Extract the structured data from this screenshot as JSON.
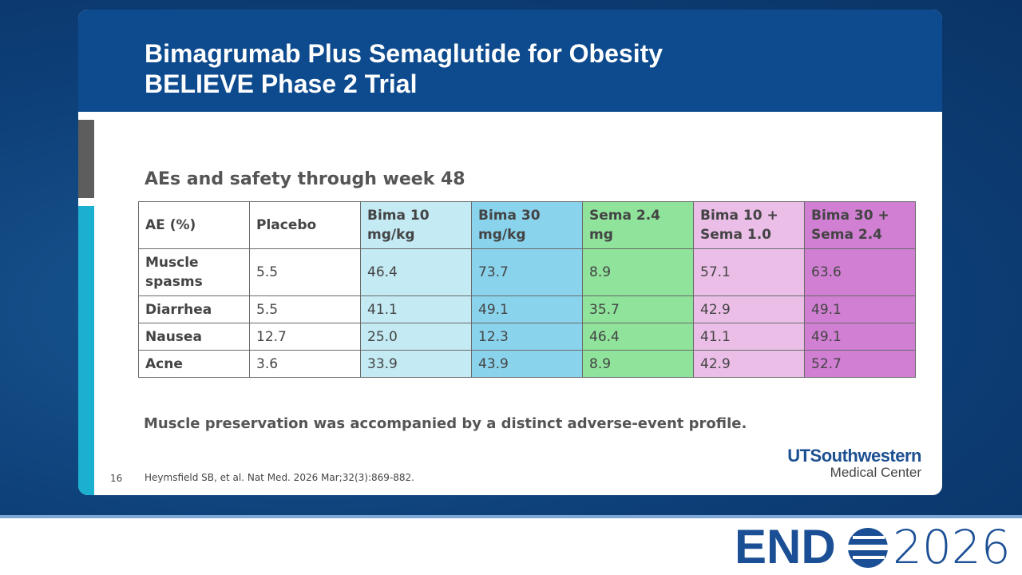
{
  "header": {
    "title": [
      "Bimagrumab Plus Semaglutide for Obesity",
      "BELIEVE Phase 2 Trial"
    ]
  },
  "subtitle": "AEs and safety through week 48",
  "table": {
    "columns": [
      "AE (%)",
      "Placebo",
      "Bima 10 mg/kg",
      "Bima 30 mg/kg",
      "Sema 2.4 mg",
      "Bima 10 + Sema 1.0",
      "Bima 30 + Sema 2.4"
    ],
    "column_colors": [
      "#ffffff",
      "#ffffff",
      "#c4eaf4",
      "#8ad3ec",
      "#8fe39b",
      "#ebbee8",
      "#d07fd3"
    ],
    "rows": [
      [
        "Muscle spasms",
        "5.5",
        "46.4",
        "73.7",
        "8.9",
        "57.1",
        "63.6"
      ],
      [
        "Diarrhea",
        "5.5",
        "41.1",
        "49.1",
        "35.7",
        "42.9",
        "49.1"
      ],
      [
        "Nausea",
        "12.7",
        "25.0",
        "12.3",
        "46.4",
        "41.1",
        "49.1"
      ],
      [
        "Acne",
        "3.6",
        "33.9",
        "43.9",
        "8.9",
        "42.9",
        "52.7"
      ]
    ]
  },
  "conclusion": "Muscle preservation was accompanied by a distinct adverse-event profile.",
  "footer": {
    "page": "16",
    "reference": "Heymsfield SB, et al. Nat Med. 2026 Mar;32(3):869-882.",
    "logo": {
      "name": "UTSouthwestern",
      "subname": "Medical Center"
    }
  },
  "event": {
    "name": "END",
    "year": "2026"
  }
}
